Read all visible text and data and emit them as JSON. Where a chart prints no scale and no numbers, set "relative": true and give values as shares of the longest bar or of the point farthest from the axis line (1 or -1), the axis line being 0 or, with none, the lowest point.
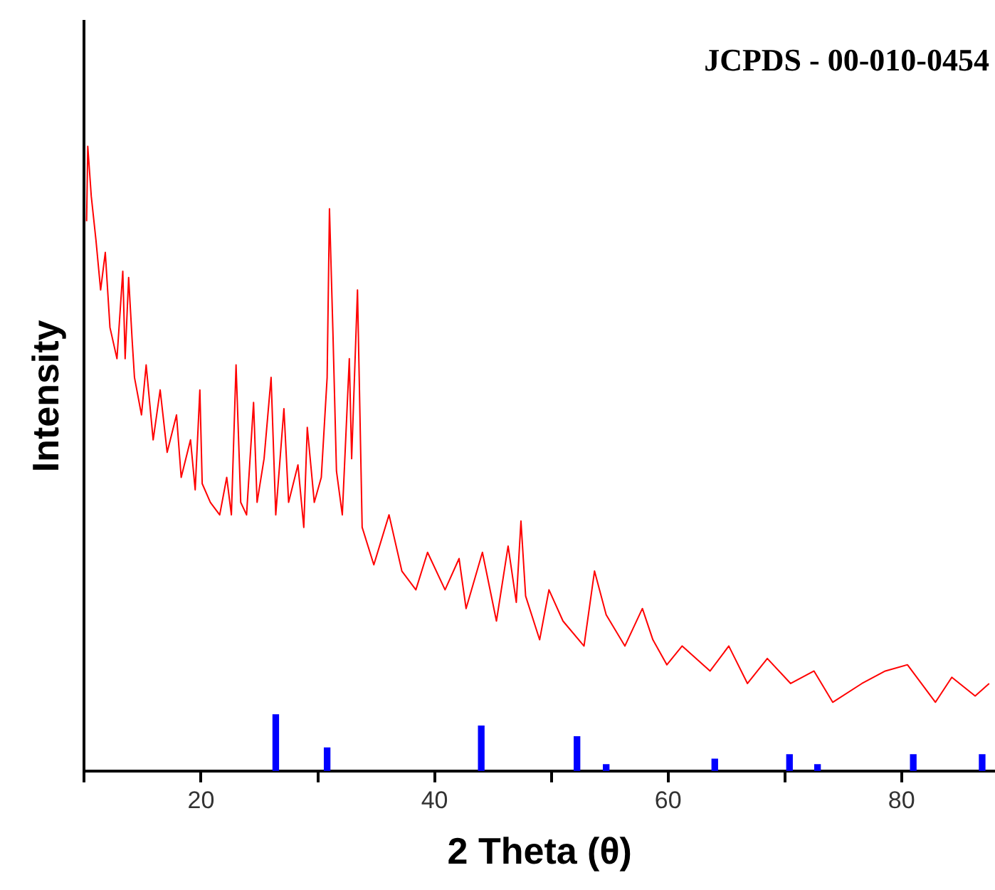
{
  "chart_data": {
    "type": "line",
    "relative": true,
    "xlabel": "2 Theta (θ)",
    "ylabel": "Intensity",
    "annotations": [
      "JCPDS - 00-010-0454"
    ],
    "xlim": [
      10,
      88
    ],
    "xticks": [
      {
        "value": 10,
        "label": null
      },
      20,
      {
        "value": 30,
        "label": null
      },
      40,
      {
        "value": 50,
        "label": null
      },
      60,
      {
        "value": 70,
        "label": null
      },
      80
    ],
    "tick_labels": "x",
    "grid": false,
    "legend": false,
    "marker": "none",
    "line_style": "solid",
    "series": [
      {
        "color": "#ff0000",
        "x": [
          10.2,
          10.3,
          10.6,
          11.0,
          11.4,
          11.8,
          12.2,
          12.8,
          13.3,
          13.5,
          13.8,
          14.1,
          14.3,
          14.9,
          15.3,
          15.9,
          16.5,
          17.1,
          17.9,
          18.3,
          19.1,
          19.5,
          19.9,
          20.1,
          20.8,
          21.6,
          22.2,
          22.6,
          23.0,
          23.4,
          23.9,
          24.5,
          24.8,
          25.4,
          26.0,
          26.4,
          27.1,
          27.5,
          28.3,
          28.8,
          29.1,
          29.7,
          30.3,
          30.8,
          31.0,
          31.3,
          31.6,
          32.1,
          32.7,
          32.9,
          33.4,
          33.8,
          34.8,
          36.1,
          37.2,
          38.4,
          39.4,
          40.9,
          42.1,
          42.7,
          44.1,
          45.3,
          46.3,
          47.0,
          47.4,
          47.8,
          49.0,
          49.8,
          51.0,
          52.8,
          53.7,
          54.7,
          56.3,
          57.8,
          58.7,
          59.9,
          61.2,
          63.6,
          65.2,
          66.8,
          68.5,
          70.5,
          72.5,
          74.1,
          76.6,
          78.6,
          80.5,
          82.9,
          84.3,
          86.3,
          87.5
        ],
        "values": [
          0.88,
          1.0,
          0.92,
          0.85,
          0.77,
          0.83,
          0.71,
          0.66,
          0.8,
          0.66,
          0.79,
          0.69,
          0.63,
          0.57,
          0.65,
          0.53,
          0.61,
          0.51,
          0.57,
          0.47,
          0.53,
          0.45,
          0.61,
          0.46,
          0.43,
          0.41,
          0.47,
          0.41,
          0.65,
          0.43,
          0.41,
          0.59,
          0.43,
          0.5,
          0.63,
          0.41,
          0.58,
          0.43,
          0.49,
          0.39,
          0.55,
          0.43,
          0.47,
          0.63,
          0.9,
          0.7,
          0.48,
          0.41,
          0.66,
          0.5,
          0.77,
          0.39,
          0.33,
          0.41,
          0.32,
          0.29,
          0.35,
          0.29,
          0.34,
          0.26,
          0.35,
          0.24,
          0.36,
          0.27,
          0.4,
          0.28,
          0.21,
          0.29,
          0.24,
          0.2,
          0.32,
          0.25,
          0.2,
          0.26,
          0.21,
          0.17,
          0.2,
          0.16,
          0.2,
          0.14,
          0.18,
          0.14,
          0.16,
          0.11,
          0.14,
          0.16,
          0.17,
          0.11,
          0.15,
          0.12,
          0.14
        ]
      },
      {
        "type": "bar",
        "color": "#0000ff",
        "x": [
          26.4,
          30.8,
          44.0,
          52.2,
          54.7,
          64.0,
          70.4,
          72.8,
          81.0,
          86.9
        ],
        "values": [
          0.09,
          0.037,
          0.072,
          0.055,
          0.01,
          0.019,
          0.026,
          0.01,
          0.026,
          0.026
        ]
      }
    ]
  }
}
